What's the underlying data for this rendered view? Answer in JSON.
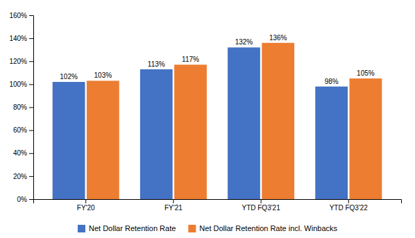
{
  "chart_data": {
    "type": "bar",
    "categories": [
      "FY'20",
      "FY'21",
      "YTD FQ3'21",
      "YTD FQ3'22"
    ],
    "series": [
      {
        "name": "Net Dollar Retention Rate",
        "color": "#4472C4",
        "values": [
          1.02,
          1.13,
          1.32,
          0.98
        ],
        "value_labels": [
          "102%",
          "113%",
          "132%",
          "98%"
        ]
      },
      {
        "name": "Net Dollar Retention Rate incl. Winbacks",
        "color": "#ED7D31",
        "values": [
          1.03,
          1.17,
          1.36,
          1.05
        ],
        "value_labels": [
          "103%",
          "117%",
          "136%",
          "105%"
        ]
      }
    ],
    "ylim": [
      0,
      1.6
    ],
    "yticks": [
      {
        "value": 0.0,
        "label": "0%"
      },
      {
        "value": 0.2,
        "label": "20%"
      },
      {
        "value": 0.4,
        "label": "40%"
      },
      {
        "value": 0.6,
        "label": "60%"
      },
      {
        "value": 0.8,
        "label": "80%"
      },
      {
        "value": 1.0,
        "label": "100%"
      },
      {
        "value": 1.2,
        "label": "120%"
      },
      {
        "value": 1.4,
        "label": "140%"
      },
      {
        "value": 1.6,
        "label": "160%"
      }
    ],
    "grid": false,
    "legend": "bottom",
    "data_labels": true
  }
}
